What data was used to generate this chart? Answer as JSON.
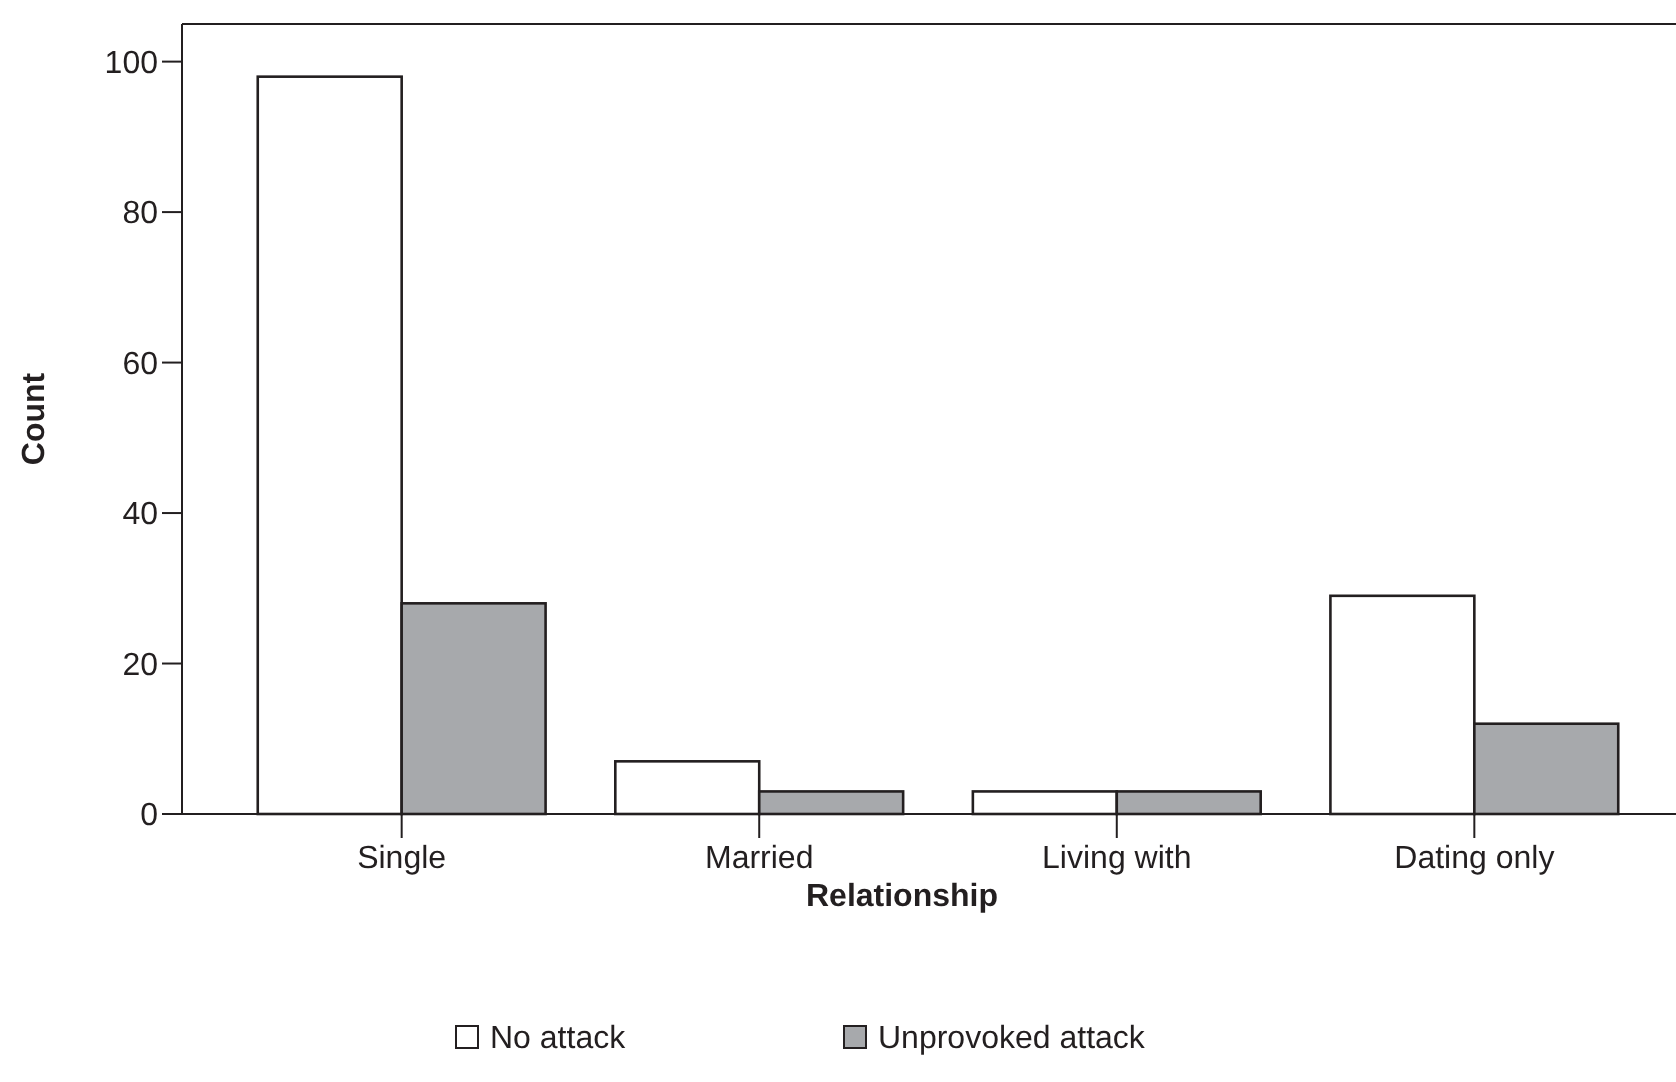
{
  "chart_data": {
    "type": "bar",
    "xlabel": "Relationship",
    "ylabel": "Count",
    "categories": [
      "Single",
      "Married",
      "Living with",
      "Dating only"
    ],
    "series": [
      {
        "name": "No attack",
        "color": "#ffffff",
        "values": [
          98,
          7,
          3,
          29
        ]
      },
      {
        "name": "Unprovoked attack",
        "color": "#a7a9ac",
        "values": [
          28,
          3,
          3,
          12
        ]
      }
    ],
    "ylim": [
      0,
      105
    ],
    "yticks": [
      0,
      20,
      40,
      60,
      80,
      100
    ],
    "grid": false,
    "legend": "bottom"
  }
}
